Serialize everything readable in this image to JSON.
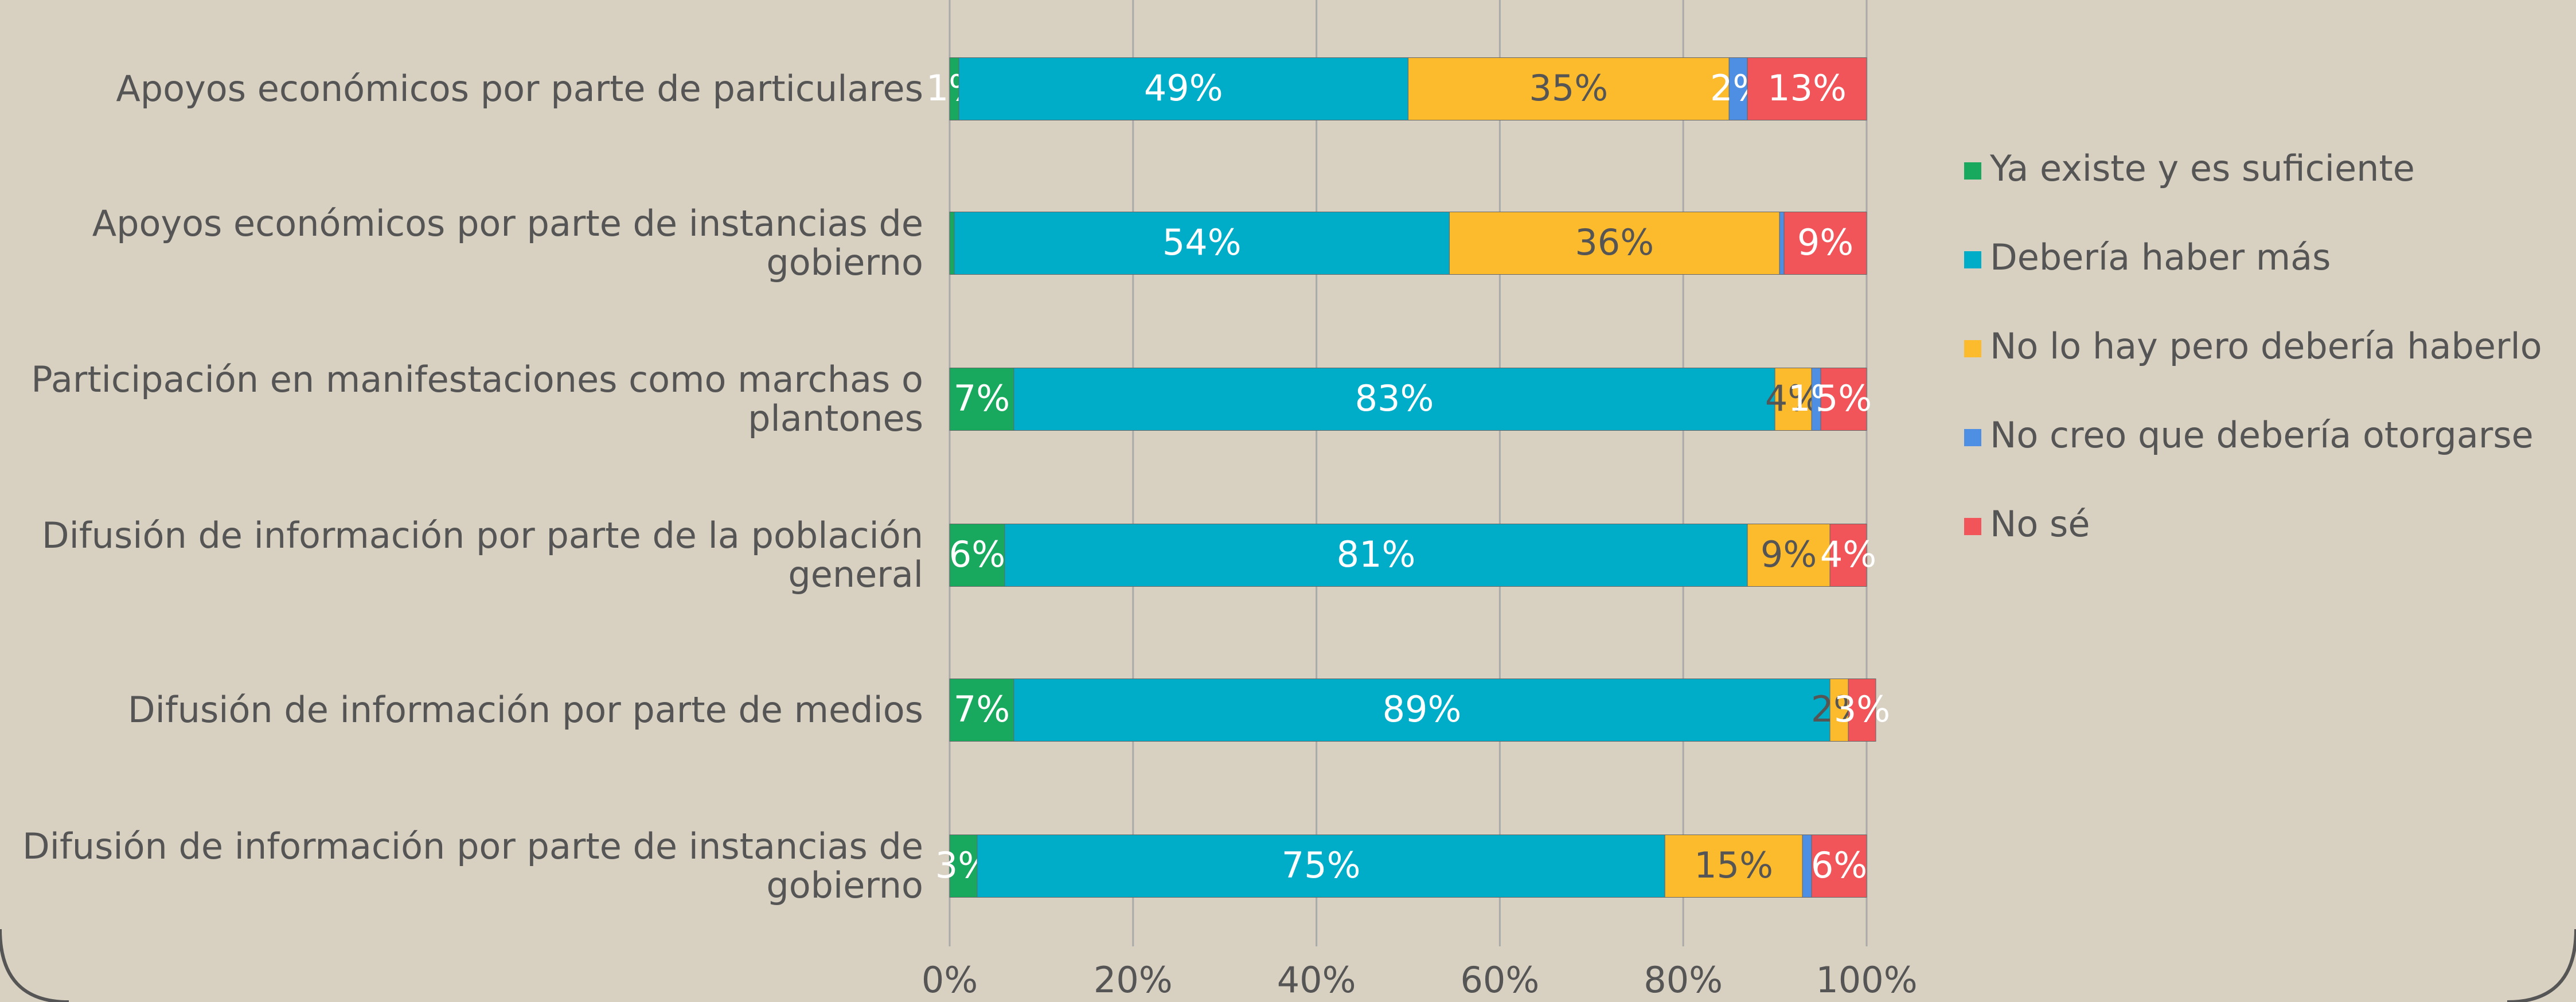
{
  "chart_data": {
    "type": "stacked_bar_horizontal",
    "categories": [
      "Apoyos económicos por parte de particulares",
      "Apoyos económicos por parte de instancias de gobierno",
      "Participación en manifestaciones como marchas o plantones",
      "Difusión de información por parte de la población general",
      "Difusión de información por parte de medios",
      "Difusión de información por parte de instancias de gobierno"
    ],
    "series": [
      {
        "name": "Ya existe y es suficiente",
        "color": "#18a95e",
        "values": [
          1,
          0.5,
          7,
          6,
          7,
          3
        ],
        "value_labels": [
          "1%",
          null,
          "7%",
          "6%",
          "7%",
          "3%"
        ]
      },
      {
        "name": "Debería haber más",
        "color": "#00adc9",
        "values": [
          49,
          54,
          83,
          81,
          89,
          75
        ],
        "value_labels": [
          "49%",
          "54%",
          "83%",
          "81%",
          "89%",
          "75%"
        ]
      },
      {
        "name": "No lo hay pero debería haberlo",
        "color": "#fbbb2d",
        "values": [
          35,
          36,
          4,
          9,
          2,
          15
        ],
        "value_labels": [
          "35%",
          "36%",
          "4%",
          "9%",
          "2%",
          "15%"
        ]
      },
      {
        "name": "No creo que debería otorgarse",
        "color": "#4e8ee3",
        "values": [
          2,
          0.5,
          1,
          0,
          0,
          1
        ],
        "value_labels": [
          "2%",
          null,
          "1%",
          null,
          null,
          null
        ]
      },
      {
        "name": "No sé",
        "color": "#f15459",
        "values": [
          13,
          9,
          5,
          4,
          3,
          6
        ],
        "value_labels": [
          "13%",
          "9%",
          "5%",
          "4%",
          "3%",
          "6%"
        ]
      }
    ],
    "xlim": [
      0,
      100
    ],
    "xticks": [
      {
        "value": 0,
        "label": "0%"
      },
      {
        "value": 20,
        "label": "20%"
      },
      {
        "value": 40,
        "label": "40%"
      },
      {
        "value": 60,
        "label": "60%"
      },
      {
        "value": 80,
        "label": "80%"
      },
      {
        "value": 100,
        "label": "100%"
      }
    ],
    "grid": true,
    "legend": "right"
  }
}
